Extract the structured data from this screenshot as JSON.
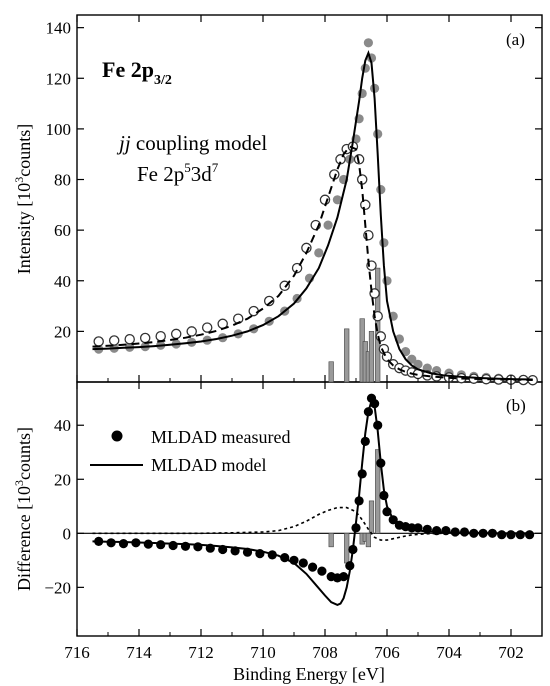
{
  "chart_data": [
    {
      "panel": "(a)",
      "type": "scatter",
      "title": "Fe 2p3/2",
      "title_main": "Fe 2p",
      "title_sub": "3/2",
      "annotation_model": "jj coupling model",
      "annotation_model_italic": "jj",
      "annotation_model_rest": " coupling model",
      "annotation_config": "Fe 2p53d7",
      "annotation_config_parts": [
        "Fe 2p",
        "5",
        "3d",
        "7"
      ],
      "ylabel": "Intensity [103counts]",
      "ylabel_parts": [
        "Intensity [10",
        "3",
        "counts]"
      ],
      "xlim": [
        716,
        701
      ],
      "ylim": [
        0,
        145
      ],
      "x_reversed": true,
      "y_ticks": [
        20,
        40,
        60,
        80,
        100,
        120,
        140
      ],
      "grid": false,
      "series": [
        {
          "style": "gray-filled-circles",
          "color": "#8a8a8a",
          "x": [
            715.3,
            714.8,
            714.3,
            713.8,
            713.3,
            712.8,
            712.3,
            711.8,
            711.3,
            710.8,
            710.3,
            709.8,
            709.3,
            708.9,
            708.5,
            708.2,
            707.9,
            707.6,
            707.4,
            707.2,
            707.0,
            706.9,
            706.8,
            706.7,
            706.6,
            706.5,
            706.4,
            706.3,
            706.2,
            706.1,
            706.0,
            705.8,
            705.6,
            705.4,
            705.2,
            705.0,
            704.7,
            704.4,
            704.0,
            703.6,
            703.2,
            702.8,
            702.4,
            702.0,
            701.6,
            701.3
          ],
          "y": [
            13,
            13.3,
            13.7,
            14,
            14.5,
            15,
            15.7,
            16.5,
            17.5,
            19,
            21,
            24,
            28,
            33,
            41,
            51,
            62,
            72,
            80,
            88,
            96,
            104,
            114,
            124,
            134,
            128,
            116,
            98,
            76,
            55,
            40,
            26,
            17,
            12,
            9,
            7,
            5.5,
            4.5,
            3.5,
            2.8,
            2.2,
            1.8,
            1.5,
            1.2,
            1,
            0.9
          ]
        },
        {
          "style": "open-circles",
          "color": "#333333",
          "x": [
            715.3,
            714.8,
            714.3,
            713.8,
            713.3,
            712.8,
            712.3,
            711.8,
            711.3,
            710.8,
            710.3,
            709.8,
            709.3,
            708.9,
            708.6,
            708.3,
            708.0,
            707.7,
            707.5,
            707.3,
            707.1,
            706.9,
            706.8,
            706.7,
            706.6,
            706.5,
            706.4,
            706.3,
            706.2,
            706.1,
            706.0,
            705.8,
            705.6,
            705.4,
            705.2,
            705.0,
            704.7,
            704.4,
            704.0,
            703.6,
            703.2,
            702.8,
            702.4,
            702.0,
            701.6,
            701.3
          ],
          "y": [
            16,
            16.4,
            16.9,
            17.4,
            18.1,
            19,
            20,
            21.5,
            23,
            25,
            28,
            32,
            38,
            45,
            53,
            62,
            72,
            82,
            88,
            92,
            93,
            88,
            80,
            70,
            58,
            46,
            35,
            26,
            18,
            13,
            10,
            7,
            5.5,
            4.5,
            3.8,
            3.2,
            2.6,
            2.2,
            1.8,
            1.5,
            1.3,
            1.1,
            1,
            0.9,
            0.8,
            0.7
          ]
        },
        {
          "style": "solid-line",
          "x": [
            715.5,
            715.0,
            714.5,
            714.0,
            713.5,
            713.0,
            712.5,
            712.0,
            711.5,
            711.0,
            710.5,
            710.0,
            709.5,
            709.0,
            708.6,
            708.2,
            707.9,
            707.6,
            707.3,
            707.1,
            706.9,
            706.8,
            706.7,
            706.6,
            706.5,
            706.4,
            706.3,
            706.2,
            706.1,
            706.0,
            705.8,
            705.6,
            705.4,
            705.2,
            705.0,
            704.6,
            704.2,
            703.6,
            703.0,
            702.4,
            701.8,
            701.3
          ],
          "y": [
            13,
            13.2,
            13.5,
            13.8,
            14.2,
            14.7,
            15.3,
            16,
            17,
            18.3,
            20,
            22.5,
            26,
            31,
            37,
            45,
            54,
            65,
            80,
            95,
            111,
            120,
            127,
            130,
            126,
            112,
            90,
            66,
            46,
            32,
            20,
            13,
            9,
            6.5,
            5,
            3.5,
            2.7,
            2,
            1.6,
            1.3,
            1.1,
            1
          ]
        },
        {
          "style": "dashed-line",
          "x": [
            715.5,
            715.0,
            714.5,
            714.0,
            713.5,
            713.0,
            712.5,
            712.0,
            711.5,
            711.0,
            710.5,
            710.0,
            709.5,
            709.0,
            708.6,
            708.2,
            707.9,
            707.6,
            707.4,
            707.2,
            707.0,
            706.9,
            706.8,
            706.7,
            706.6,
            706.5,
            706.4,
            706.3,
            706.2,
            706.0,
            705.8,
            705.6,
            705.4,
            705.2,
            705.0,
            704.6,
            704.2,
            703.6,
            703.0,
            702.4,
            701.8,
            701.3
          ],
          "y": [
            14,
            14.3,
            14.7,
            15.2,
            15.8,
            16.6,
            17.5,
            18.7,
            20.2,
            22.3,
            25,
            29,
            34,
            42,
            51,
            62,
            73,
            84,
            90,
            93,
            92,
            86,
            76,
            62,
            48,
            36,
            26,
            19,
            14,
            9,
            6.5,
            5,
            4,
            3.3,
            2.8,
            2.2,
            1.8,
            1.4,
            1.2,
            1,
            0.9,
            0.8
          ]
        }
      ],
      "bars": {
        "color": "#9a9a9a",
        "x": [
          707.8,
          707.3,
          706.8,
          706.7,
          706.6,
          706.5,
          706.3
        ],
        "height": [
          8,
          21,
          25,
          16,
          12,
          20,
          45
        ]
      }
    },
    {
      "panel": "(b)",
      "type": "scatter",
      "ylabel": "Difference [103counts]",
      "ylabel_parts": [
        "Difference [10",
        "3",
        "counts]"
      ],
      "xlabel": "Binding Energy [eV]",
      "xlim": [
        716,
        701
      ],
      "ylim": [
        -38,
        56
      ],
      "x_reversed": true,
      "x_ticks": [
        716,
        714,
        712,
        710,
        708,
        706,
        704,
        702
      ],
      "y_ticks": [
        -20,
        0,
        20,
        40
      ],
      "grid": false,
      "legend": [
        {
          "label": "MLDAD measured",
          "style": "filled-circles"
        },
        {
          "label": "MLDAD model",
          "style": "solid-line"
        }
      ],
      "legend_position": "top-left",
      "series": [
        {
          "name": "MLDAD measured",
          "style": "filled-circles",
          "color": "#000000",
          "x": [
            715.3,
            714.9,
            714.5,
            714.1,
            713.7,
            713.3,
            712.9,
            712.5,
            712.1,
            711.7,
            711.3,
            710.9,
            710.5,
            710.1,
            709.7,
            709.3,
            709.0,
            708.7,
            708.4,
            708.1,
            707.8,
            707.6,
            707.4,
            707.2,
            707.1,
            707.0,
            706.9,
            706.8,
            706.7,
            706.6,
            706.5,
            706.4,
            706.3,
            706.2,
            706.1,
            706.0,
            705.8,
            705.6,
            705.4,
            705.2,
            705.0,
            704.7,
            704.4,
            704.1,
            703.8,
            703.5,
            703.2,
            702.9,
            702.6,
            702.3,
            702.0,
            701.7,
            701.4
          ],
          "y": [
            -3,
            -3.5,
            -3.8,
            -3.5,
            -4,
            -4.2,
            -4.5,
            -4.8,
            -5,
            -5.5,
            -6,
            -6.5,
            -7,
            -7.5,
            -8,
            -9,
            -10,
            -11,
            -12.5,
            -14,
            -16,
            -16.5,
            -16,
            -12,
            -6,
            2,
            12,
            22,
            34,
            45,
            50,
            48,
            40,
            26,
            14,
            8,
            5,
            3,
            2.5,
            2,
            2,
            1.5,
            1,
            1,
            0.5,
            0.5,
            0,
            0,
            0,
            -0.5,
            -0.5,
            -0.5,
            -0.5
          ]
        },
        {
          "name": "MLDAD model",
          "style": "solid-line",
          "x": [
            715.5,
            715.0,
            714.5,
            714.0,
            713.5,
            713.0,
            712.5,
            712.0,
            711.5,
            711.0,
            710.5,
            710.0,
            709.5,
            709.0,
            708.6,
            708.3,
            708.0,
            707.8,
            707.6,
            707.5,
            707.4,
            707.3,
            707.2,
            707.1,
            707.0,
            706.9,
            706.8,
            706.7,
            706.6,
            706.5,
            706.4,
            706.3,
            706.2,
            706.1,
            706.0,
            705.8,
            705.5,
            705.2,
            704.8,
            704.2,
            703.6,
            703.0,
            702.4,
            701.8,
            701.3
          ],
          "y": [
            -3,
            -3.1,
            -3.2,
            -3.4,
            -3.6,
            -3.8,
            -4,
            -4.3,
            -4.7,
            -5.2,
            -5.8,
            -6.8,
            -8.3,
            -11,
            -15,
            -19,
            -23,
            -25.5,
            -26.5,
            -26,
            -24,
            -20,
            -14,
            -6,
            4,
            14,
            26,
            37,
            45,
            49,
            47,
            38,
            26,
            16,
            10,
            5,
            2.5,
            1.5,
            0.8,
            0.4,
            0.2,
            0.1,
            0,
            0,
            0
          ]
        },
        {
          "style": "dotted-line",
          "x": [
            715.5,
            714.0,
            712.0,
            711.0,
            710.0,
            709.5,
            709.0,
            708.6,
            708.2,
            707.9,
            707.6,
            707.3,
            707.0,
            706.8,
            706.6,
            706.4,
            706.2,
            706.0,
            705.8,
            705.5,
            705.2,
            704.8,
            704.2,
            703.0,
            701.3
          ],
          "y": [
            0,
            0,
            0,
            0.2,
            0.5,
            1,
            2.5,
            4.5,
            7,
            8.5,
            9.5,
            9.5,
            8,
            5,
            1.5,
            -1.5,
            -2.5,
            -2.5,
            -2,
            -1.2,
            -0.6,
            -0.2,
            0,
            0,
            0
          ]
        }
      ],
      "bars": {
        "color": "#9a9a9a",
        "x": [
          707.8,
          707.3,
          706.8,
          706.7,
          706.6,
          706.5,
          706.3
        ],
        "height": [
          -5,
          -11,
          -4,
          -3,
          -5,
          12,
          31
        ]
      }
    }
  ]
}
